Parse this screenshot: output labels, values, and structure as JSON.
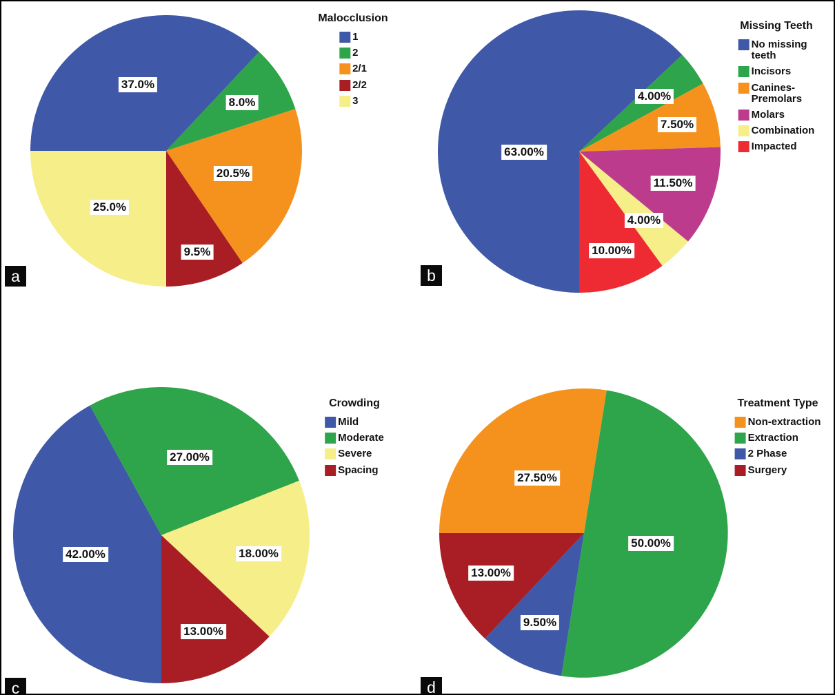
{
  "figure": {
    "description": "Four pie charts in a 2x2 grid, panels a-d",
    "background_color": "#ffffff",
    "border_color": "#000000",
    "panel_letter_bg": "#0a0a0a",
    "panel_letter_fg": "#ffffff"
  },
  "chart_data": [
    {
      "type": "pie",
      "panel": "a",
      "legend_title": "Malocclusion",
      "legend_position": "top-right",
      "clockwise": true,
      "start_angle_deg": 180,
      "slices": [
        {
          "label": "1",
          "value_pct": 37.0,
          "display": "37.0%",
          "color": "#3F58A7",
          "label_r": 0.53
        },
        {
          "label": "2",
          "value_pct": 8.0,
          "display": "8.0%",
          "color": "#2EA44B",
          "label_r": 0.66
        },
        {
          "label": "2/1",
          "value_pct": 20.5,
          "display": "20.5%",
          "color": "#F5921E",
          "label_r": 0.52
        },
        {
          "label": "2/2",
          "value_pct": 9.5,
          "display": "9.5%",
          "color": "#A81E24",
          "label_r": 0.78
        },
        {
          "label": "3",
          "value_pct": 25.0,
          "display": "25.0%",
          "color": "#F5EE89",
          "label_r": 0.59
        }
      ]
    },
    {
      "type": "pie",
      "panel": "b",
      "legend_title": "Missing Teeth",
      "legend_position": "top-right",
      "clockwise": true,
      "start_angle_deg": -90,
      "slices": [
        {
          "label": "No missing teeth",
          "legend_label": "No missing\nteeth",
          "value_pct": 63.0,
          "display": "63.00%",
          "color": "#3F58A7",
          "label_r": 0.39,
          "label_angle_deg": 181
        },
        {
          "label": "Incisors",
          "value_pct": 4.0,
          "display": "4.00%",
          "color": "#2EA44B",
          "label_r": 0.66
        },
        {
          "label": "Canines-Premolars",
          "legend_label": "Canines-\nPremolars",
          "value_pct": 7.5,
          "display": "7.50%",
          "color": "#F5921E",
          "label_r": 0.72
        },
        {
          "label": "Molars",
          "value_pct": 11.5,
          "display": "11.50%",
          "color": "#BC3B8C",
          "label_r": 0.7
        },
        {
          "label": "Combination",
          "value_pct": 4.0,
          "display": "4.00%",
          "color": "#F5EE89",
          "label_r": 0.67
        },
        {
          "label": "Impacted",
          "value_pct": 10.0,
          "display": "10.00%",
          "color": "#EE2B33",
          "label_r": 0.74
        }
      ]
    },
    {
      "type": "pie",
      "panel": "c",
      "legend_title": "Crowding",
      "legend_position": "top-right",
      "clockwise": true,
      "start_angle_deg": -90,
      "slices": [
        {
          "label": "Mild",
          "value_pct": 42.0,
          "display": "42.00%",
          "color": "#3F58A7",
          "label_r": 0.53
        },
        {
          "label": "Moderate",
          "value_pct": 27.0,
          "display": "27.00%",
          "color": "#2EA44B",
          "label_r": 0.56
        },
        {
          "label": "Severe",
          "value_pct": 18.0,
          "display": "18.00%",
          "color": "#F5EE89",
          "label_r": 0.67
        },
        {
          "label": "Spacing",
          "value_pct": 13.0,
          "display": "13.00%",
          "color": "#A81E24",
          "label_r": 0.71
        }
      ]
    },
    {
      "type": "pie",
      "panel": "d",
      "legend_title": "Treatment Type",
      "legend_position": "top-right",
      "clockwise": true,
      "start_angle_deg": 180,
      "slices": [
        {
          "label": "Non-extraction",
          "value_pct": 27.5,
          "display": "27.50%",
          "color": "#F5921E",
          "label_r": 0.5
        },
        {
          "label": "Extraction",
          "value_pct": 50.0,
          "display": "50.00%",
          "color": "#2EA44B",
          "label_r": 0.47
        },
        {
          "label": "2 Phase",
          "value_pct": 9.5,
          "display": "9.50%",
          "color": "#3F58A7",
          "label_r": 0.69
        },
        {
          "label": "Surgery",
          "value_pct": 13.0,
          "display": "13.00%",
          "color": "#A81E24",
          "label_r": 0.7
        }
      ]
    }
  ]
}
